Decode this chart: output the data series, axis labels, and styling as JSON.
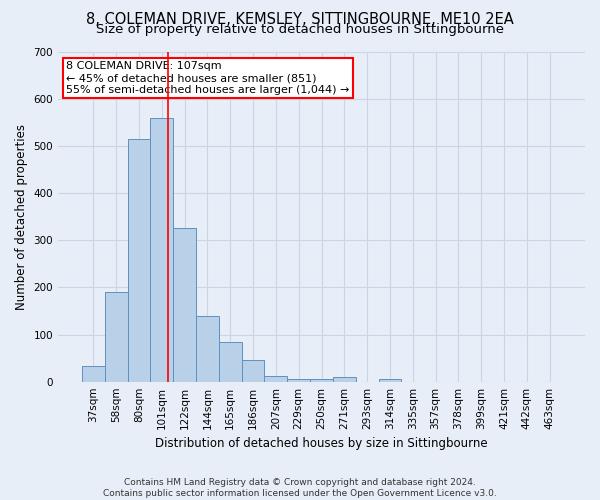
{
  "title": "8, COLEMAN DRIVE, KEMSLEY, SITTINGBOURNE, ME10 2EA",
  "subtitle": "Size of property relative to detached houses in Sittingbourne",
  "xlabel": "Distribution of detached houses by size in Sittingbourne",
  "ylabel": "Number of detached properties",
  "categories": [
    "37sqm",
    "58sqm",
    "80sqm",
    "101sqm",
    "122sqm",
    "144sqm",
    "165sqm",
    "186sqm",
    "207sqm",
    "229sqm",
    "250sqm",
    "271sqm",
    "293sqm",
    "314sqm",
    "335sqm",
    "357sqm",
    "378sqm",
    "399sqm",
    "421sqm",
    "442sqm",
    "463sqm"
  ],
  "values": [
    33,
    190,
    515,
    560,
    325,
    140,
    85,
    45,
    12,
    6,
    5,
    10,
    0,
    5,
    0,
    0,
    0,
    0,
    0,
    0,
    0
  ],
  "bar_color": "#b8d0e8",
  "bar_edge_color": "#6090c0",
  "annotation_label": "8 COLEMAN DRIVE: 107sqm",
  "annotation_line1": "← 45% of detached houses are smaller (851)",
  "annotation_line2": "55% of semi-detached houses are larger (1,044) →",
  "annotation_box_color": "white",
  "annotation_box_edge_color": "red",
  "vline_color": "red",
  "vline_x": 3.28,
  "ylim": [
    0,
    700
  ],
  "yticks": [
    0,
    100,
    200,
    300,
    400,
    500,
    600,
    700
  ],
  "grid_color": "#ccd5e5",
  "background_color": "#e8eef8",
  "footer": "Contains HM Land Registry data © Crown copyright and database right 2024.\nContains public sector information licensed under the Open Government Licence v3.0.",
  "title_fontsize": 10.5,
  "subtitle_fontsize": 9.5,
  "xlabel_fontsize": 8.5,
  "ylabel_fontsize": 8.5,
  "tick_fontsize": 7.5,
  "footer_fontsize": 6.5,
  "annot_fontsize": 8.0
}
